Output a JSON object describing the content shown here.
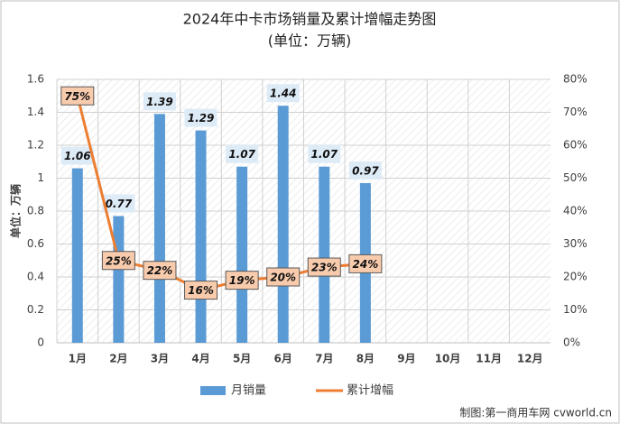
{
  "chart_data": {
    "type": "bar",
    "title": "2024年中卡市场销量及累计增幅走势图",
    "subtitle": "(单位：万辆)",
    "y_label": "单位：万辆",
    "source": "制图:第一商用车网 cvworld.cn",
    "categories": [
      "1月",
      "2月",
      "3月",
      "4月",
      "5月",
      "6月",
      "7月",
      "8月",
      "9月",
      "10月",
      "11月",
      "12月"
    ],
    "series": [
      {
        "name": "月销量",
        "type": "bar",
        "color": "#5b9bd5",
        "axis": "y",
        "values": [
          1.06,
          0.77,
          1.39,
          1.29,
          1.07,
          1.44,
          1.07,
          0.97,
          null,
          null,
          null,
          null
        ]
      },
      {
        "name": "累计增幅",
        "type": "line",
        "color": "#ed7d31",
        "axis": "y2",
        "values": [
          75,
          25,
          22,
          16,
          19,
          20,
          23,
          24,
          null,
          null,
          null,
          null
        ],
        "value_labels": [
          "75%",
          "25%",
          "22%",
          "16%",
          "19%",
          "20%",
          "23%",
          "24%",
          null,
          null,
          null,
          null
        ]
      }
    ],
    "ylim": [
      0,
      1.6
    ],
    "yticks": [
      0,
      0.2,
      0.4,
      0.6,
      0.8,
      1,
      1.2,
      1.4,
      1.6
    ],
    "y2lim": [
      0,
      80
    ],
    "y2ticks": [
      {
        "value": 0,
        "label": "0%"
      },
      {
        "value": 10,
        "label": "10%"
      },
      {
        "value": 20,
        "label": "20%"
      },
      {
        "value": 30,
        "label": "30%"
      },
      {
        "value": 40,
        "label": "40%"
      },
      {
        "value": 50,
        "label": "50%"
      },
      {
        "value": 60,
        "label": "60%"
      },
      {
        "value": 70,
        "label": "70%"
      },
      {
        "value": 80,
        "label": "80%"
      }
    ],
    "grid": true,
    "legend": "bottom"
  }
}
